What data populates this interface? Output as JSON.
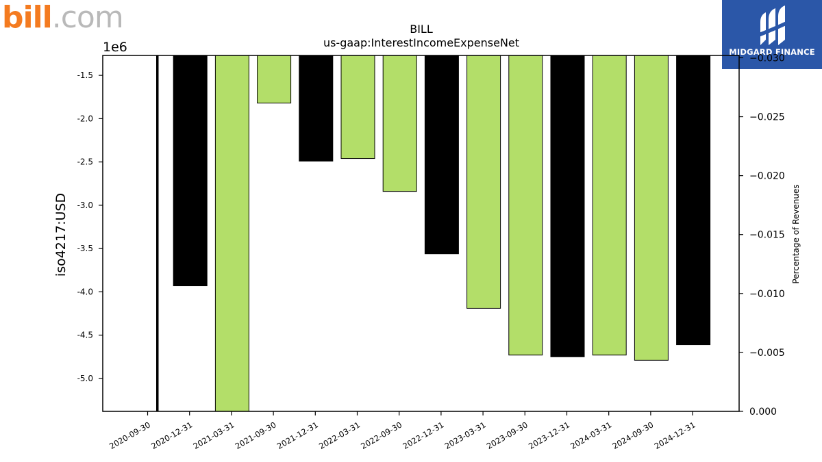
{
  "branding": {
    "left_logo_text": "bill.com",
    "right_logo_text": "MIDGARD FINANCE"
  },
  "colors": {
    "bar_black": "#000000",
    "bar_green": "#b3de69",
    "brand_orange": "#f47b20",
    "brand_blue": "#2b57a8"
  },
  "chart_data": {
    "type": "bar",
    "title": "BILL",
    "subtitle": "us-gaap:InterestIncomeExpenseNet",
    "ylabel": "iso4217:USD",
    "y_offset_label": "1e6",
    "y2label": "Percentage of Revenues",
    "categories": [
      "2020-09-30",
      "2020-12-31",
      "2021-03-31",
      "2021-09-30",
      "2021-12-31",
      "2022-03-31",
      "2022-09-30",
      "2022-12-31",
      "2023-03-31",
      "2023-09-30",
      "2023-12-31",
      "2024-03-31",
      "2024-09-30",
      "2024-12-31"
    ],
    "values": [
      -5500000,
      -3930000,
      -5800000,
      -1820000,
      -2490000,
      -2460000,
      -2840000,
      -3560000,
      -4190000,
      -4730000,
      -4750000,
      -4730000,
      -4790000,
      -4610000
    ],
    "bar_colors": [
      "#000000",
      "#000000",
      "#b3de69",
      "#b3de69",
      "#000000",
      "#b3de69",
      "#b3de69",
      "#000000",
      "#b3de69",
      "#b3de69",
      "#000000",
      "#b3de69",
      "#b3de69",
      "#000000"
    ],
    "ylim": [
      -5.38,
      -1.27
    ],
    "yticks": [
      "-1.5",
      "-2.0",
      "-2.5",
      "-3.0",
      "-3.5",
      "-4.0",
      "-4.5",
      "-5.0"
    ],
    "ytick_values": [
      -1.5,
      -2.0,
      -2.5,
      -3.0,
      -3.5,
      -4.0,
      -4.5,
      -5.0
    ],
    "y2lim": [
      0,
      -0.0302
    ],
    "y2ticks": [
      "−0.030",
      "−0.025",
      "−0.020",
      "−0.015",
      "−0.010",
      "−0.005",
      "0.000"
    ],
    "y2tick_values": [
      -0.03,
      -0.025,
      -0.02,
      -0.015,
      -0.01,
      -0.005,
      0.0
    ],
    "grid": false,
    "legend": "none"
  }
}
